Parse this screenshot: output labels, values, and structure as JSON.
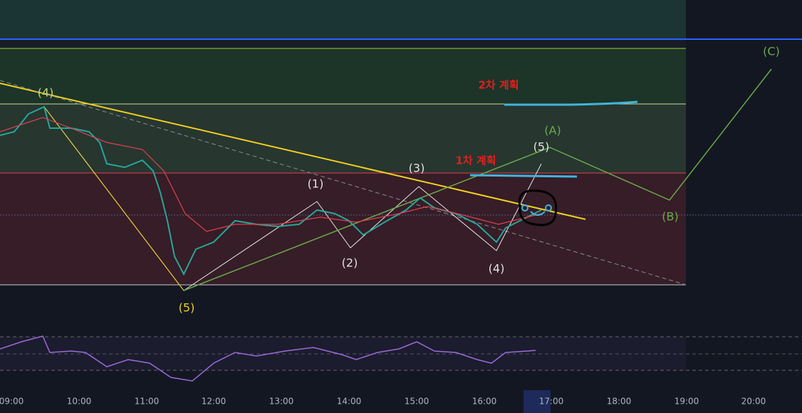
{
  "time_axis": [
    "09:00",
    "10:00",
    "11:00",
    "12:00",
    "13:00",
    "14:00",
    "15:00",
    "16:00",
    "17:00",
    "18:00",
    "19:00",
    "20:00"
  ],
  "wave_labels": [
    {
      "text": "(4)",
      "color": "#c8d870"
    },
    {
      "text": "(5)",
      "color": "#f0d020"
    },
    {
      "text": "(1)",
      "color": "#e0e0e0"
    },
    {
      "text": "(2)",
      "color": "#e0e0e0"
    },
    {
      "text": "(3)",
      "color": "#e0e0e0"
    },
    {
      "text": "(4)",
      "color": "#e0e0e0"
    },
    {
      "text": "(5)",
      "color": "#e0e0e0"
    },
    {
      "text": "(A)",
      "color": "#6aaa4a"
    },
    {
      "text": "(B)",
      "color": "#6aaa4a"
    },
    {
      "text": "(C)",
      "color": "#6aaa4a"
    }
  ],
  "plans": [
    "2차 계획",
    "1차 계획"
  ]
}
